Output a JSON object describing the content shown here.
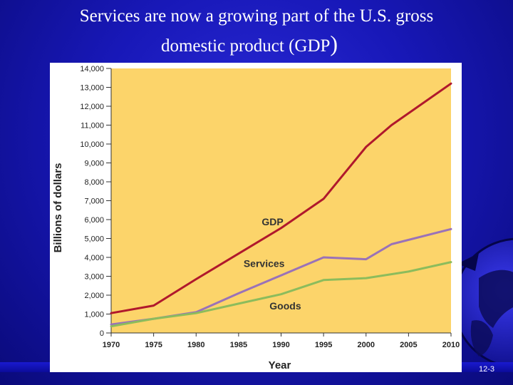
{
  "slide": {
    "title_line1": "Services are now a growing part of the U.S. gross",
    "title_line2": "domestic product (GDP",
    "title_paren": ")",
    "slide_number": "12-3",
    "background_color": "#1818b8",
    "globe_icon": "globe-icon"
  },
  "chart_data": {
    "type": "line",
    "title": "",
    "xlabel": "Year",
    "ylabel": "Billions of dollars",
    "xlim": [
      1970,
      2010
    ],
    "ylim": [
      0,
      14000
    ],
    "x_ticks": [
      1970,
      1975,
      1980,
      1985,
      1990,
      1995,
      2000,
      2005,
      2010
    ],
    "y_ticks": [
      0,
      1000,
      2000,
      3000,
      4000,
      5000,
      6000,
      7000,
      8000,
      9000,
      10000,
      11000,
      12000,
      13000,
      14000
    ],
    "x_tick_labels": [
      "1970",
      "1975",
      "1980",
      "1985",
      "1990",
      "1995",
      "2000",
      "2005",
      "2010"
    ],
    "y_tick_labels": [
      "0",
      "1,000",
      "2,000",
      "3,000",
      "4,000",
      "5,000",
      "6,000",
      "7,000",
      "8,000",
      "9,000",
      "10,000",
      "11,000",
      "12,000",
      "13,000",
      "14,000"
    ],
    "plot_background": "#fcd46a",
    "grid": false,
    "series": [
      {
        "name": "GDP",
        "color": "#b0182c",
        "x": [
          1970,
          1975,
          1980,
          1985,
          1990,
          1995,
          2000,
          2003,
          2010
        ],
        "values": [
          1050,
          1450,
          2850,
          4200,
          5550,
          7100,
          9850,
          11000,
          13200
        ]
      },
      {
        "name": "Services",
        "color": "#9a72b8",
        "x": [
          1970,
          1975,
          1980,
          1985,
          1990,
          1995,
          2000,
          2003,
          2010
        ],
        "values": [
          450,
          750,
          1100,
          2100,
          3050,
          4000,
          3900,
          4700,
          5500
        ]
      },
      {
        "name": "Goods",
        "color": "#8cbc5c",
        "x": [
          1970,
          1975,
          1980,
          1985,
          1990,
          1995,
          2000,
          2005,
          2010
        ],
        "values": [
          350,
          750,
          1050,
          1550,
          2050,
          2800,
          2900,
          3250,
          3750
        ]
      }
    ],
    "annotations": [
      {
        "text": "GDP",
        "x": 1989,
        "y": 5700
      },
      {
        "text": "Services",
        "x": 1988,
        "y": 3500
      },
      {
        "text": "Goods",
        "x": 1990.5,
        "y": 1250
      }
    ]
  }
}
